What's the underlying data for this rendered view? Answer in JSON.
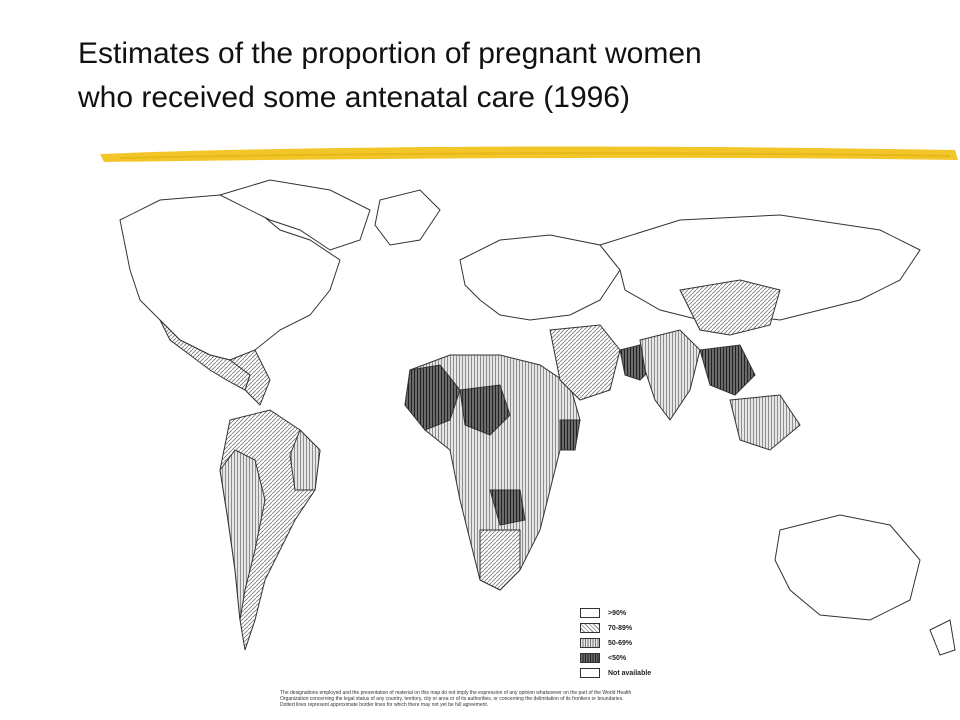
{
  "title": {
    "line1": "Estimates of the proportion of pregnant women",
    "line2": "who received some antenatal care (1996)"
  },
  "colors": {
    "accent_rule": "#f2c628",
    "land_outline": "#333333",
    "high": "#ffffff",
    "mid_high": "#d6d6d6",
    "mid": "#b4b4b4",
    "low": "#5a5a5a"
  },
  "legend": {
    "items": [
      {
        "label": ">90%",
        "class": "high"
      },
      {
        "label": "70-89%",
        "class": "mid_high"
      },
      {
        "label": "50-69%",
        "class": "mid"
      },
      {
        "label": "<50%",
        "class": "low"
      },
      {
        "label": "Not available",
        "class": "na"
      }
    ]
  },
  "footnote": {
    "line1": "The designations employed and the presentation of material on this map do not imply the expression of any opinion whatsoever on the part of the World Health",
    "line2": "Organization concerning the legal status of any country, territory, city or area or of its authorities, or concerning the delimitation of its frontiers or boundaries.",
    "line3": "Dotted lines represent approximate border lines for which there may not yet be full agreement."
  }
}
